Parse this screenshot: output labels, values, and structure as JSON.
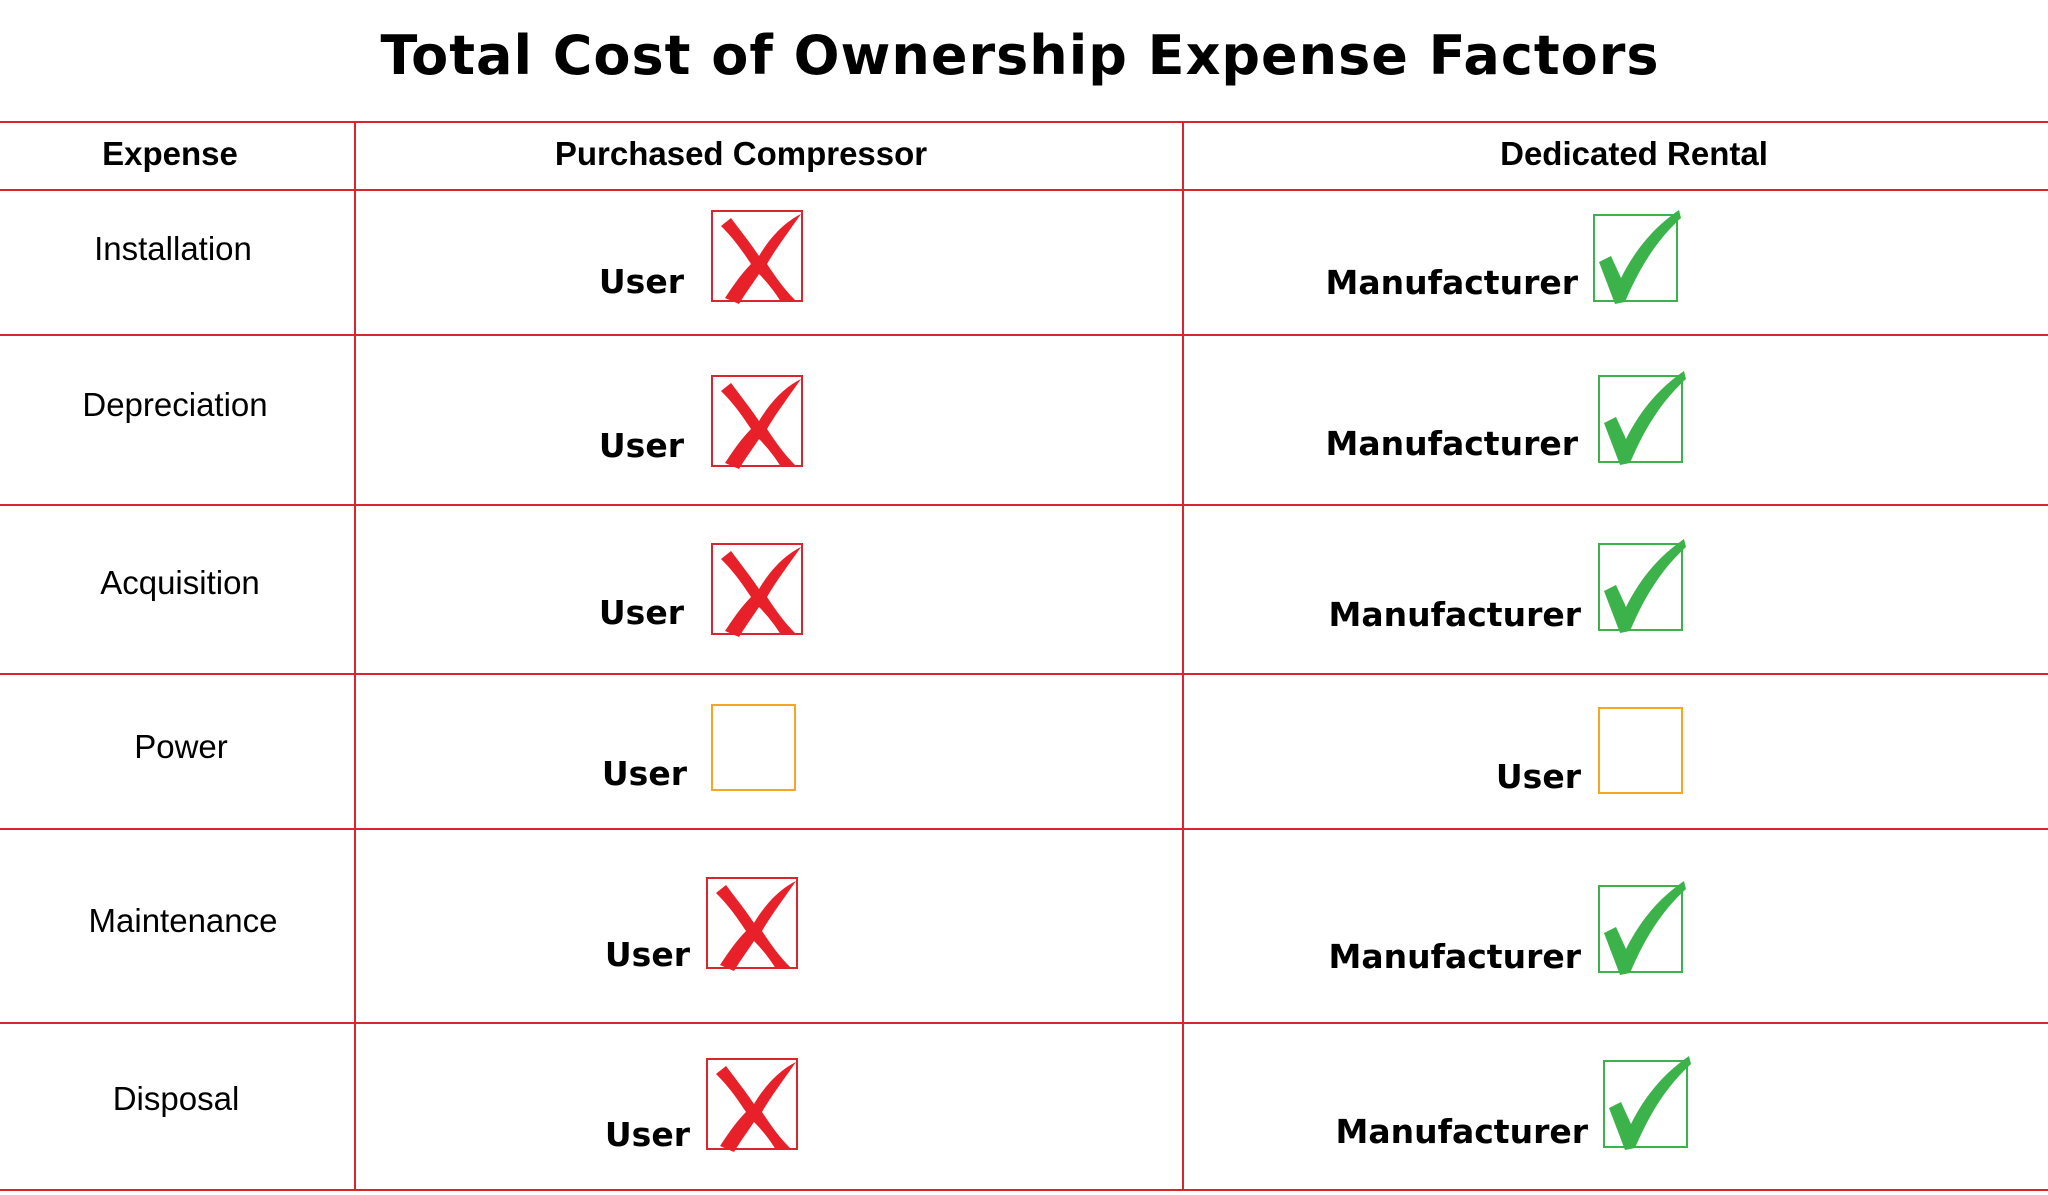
{
  "title": "Total Cost of Ownership Expense Factors",
  "header": {
    "expense": "Expense",
    "purchased": "Purchased Compressor",
    "rental": "Dedicated Rental"
  },
  "rows": [
    {
      "expense": "Installation",
      "purchased": {
        "party": "User",
        "mark": "cross"
      },
      "rental": {
        "party": "Manufacturer",
        "mark": "check"
      }
    },
    {
      "expense": "Depreciation",
      "purchased": {
        "party": "User",
        "mark": "cross"
      },
      "rental": {
        "party": "Manufacturer",
        "mark": "check"
      }
    },
    {
      "expense": "Acquisition",
      "purchased": {
        "party": "User",
        "mark": "cross"
      },
      "rental": {
        "party": "Manufacturer",
        "mark": "check"
      }
    },
    {
      "expense": "Power",
      "purchased": {
        "party": "User",
        "mark": "empty"
      },
      "rental": {
        "party": "User",
        "mark": "empty"
      }
    },
    {
      "expense": "Maintenance",
      "purchased": {
        "party": "User",
        "mark": "cross"
      },
      "rental": {
        "party": "Manufacturer",
        "mark": "check"
      }
    },
    {
      "expense": "Disposal",
      "purchased": {
        "party": "User",
        "mark": "cross"
      },
      "rental": {
        "party": "Manufacturer",
        "mark": "check"
      }
    }
  ],
  "colors": {
    "grid": "#d9262e",
    "cross": "#e8202a",
    "check": "#3cb34a",
    "empty": "#f5a623"
  }
}
